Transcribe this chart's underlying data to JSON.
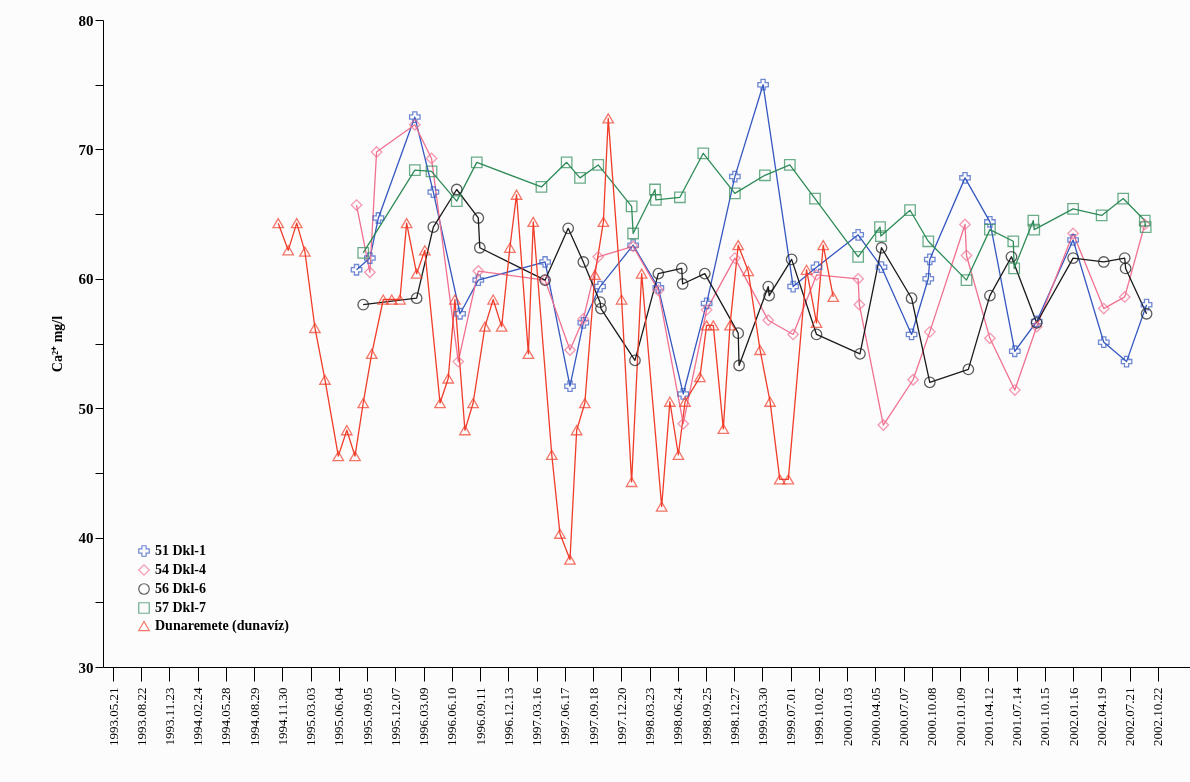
{
  "chart_data": {
    "type": "line",
    "ylabel": "Ca²⁺ mg/l",
    "xlim": [
      "1993-04-18",
      "2003-02-05"
    ],
    "ylim": [
      30,
      80
    ],
    "yticks": [
      30,
      {
        "value": 35,
        "label": null
      },
      40,
      {
        "value": 45,
        "label": null
      },
      50,
      {
        "value": 55,
        "label": null
      },
      60,
      {
        "value": 65,
        "label": null
      },
      70,
      {
        "value": 75,
        "label": null
      },
      80
    ],
    "xticks": [
      {
        "value": "1993-05-21",
        "label": "1993.05.21"
      },
      {
        "value": "1993-08-22",
        "label": "1993.08.22"
      },
      {
        "value": "1993-11-23",
        "label": "1993.11.23"
      },
      {
        "value": "1994-02-24",
        "label": "1994.02.24"
      },
      {
        "value": "1994-05-28",
        "label": "1994.05.28"
      },
      {
        "value": "1994-08-29",
        "label": "1994.08.29"
      },
      {
        "value": "1994-11-30",
        "label": "1994.11.30"
      },
      {
        "value": "1995-03-03",
        "label": "1995.03.03"
      },
      {
        "value": "1995-06-04",
        "label": "1995.06.04"
      },
      {
        "value": "1995-09-05",
        "label": "1995.09.05"
      },
      {
        "value": "1995-12-07",
        "label": "1995.12.07"
      },
      {
        "value": "1996-03-09",
        "label": "1996.03.09"
      },
      {
        "value": "1996-06-10",
        "label": "1996.06.10"
      },
      {
        "value": "1996-09-11",
        "label": "1996.09.11"
      },
      {
        "value": "1996-12-13",
        "label": "1996.12.13"
      },
      {
        "value": "1997-03-16",
        "label": "1997.03.16"
      },
      {
        "value": "1997-06-17",
        "label": "1997.06.17"
      },
      {
        "value": "1997-09-18",
        "label": "1997.09.18"
      },
      {
        "value": "1997-12-20",
        "label": "1997.12.20"
      },
      {
        "value": "1998-03-23",
        "label": "1998.03.23"
      },
      {
        "value": "1998-06-24",
        "label": "1998.06.24"
      },
      {
        "value": "1998-09-25",
        "label": "1998.09.25"
      },
      {
        "value": "1998-12-27",
        "label": "1998.12.27"
      },
      {
        "value": "1999-03-30",
        "label": "1999.03.30"
      },
      {
        "value": "1999-07-01",
        "label": "1999.07.01"
      },
      {
        "value": "1999-10-02",
        "label": "1999.10.02"
      },
      {
        "value": "2000-01-03",
        "label": "2000.01.03"
      },
      {
        "value": "2000-04-05",
        "label": "2000.04.05"
      },
      {
        "value": "2000-07-07",
        "label": "2000.07.07"
      },
      {
        "value": "2000-10-08",
        "label": "2000.10.08"
      },
      {
        "value": "2001-01-09",
        "label": "2001.01.09"
      },
      {
        "value": "2001-04-12",
        "label": "2001.04.12"
      },
      {
        "value": "2001-07-14",
        "label": "2001.07.14"
      },
      {
        "value": "2001-10-15",
        "label": "2001.10.15"
      },
      {
        "value": "2002-01-16",
        "label": "2002.01.16"
      },
      {
        "value": "2002-04-19",
        "label": "2002.04.19"
      },
      {
        "value": "2002-07-21",
        "label": "2002.07.21"
      },
      {
        "value": "2002-10-22",
        "label": "2002.10.22"
      }
    ],
    "grid": false,
    "legend": "bottom left",
    "series": [
      {
        "name": "51 Dkl-1",
        "color": "#3558c0",
        "marker": "cross",
        "x": [
          "1995-08-01",
          "1995-09-14",
          "1995-10-12",
          "1996-02-09",
          "1996-04-10",
          "1996-07-07",
          "1996-09-05",
          "1997-04-13",
          "1997-07-04",
          "1997-08-17",
          "1997-10-11",
          "1998-01-28",
          "1998-04-21",
          "1998-07-12",
          "1998-09-27",
          "1998-12-29",
          "1999-04-01",
          "1999-07-09",
          "1999-09-24",
          "2000-02-08",
          "2000-04-25",
          "2000-08-02",
          "2000-09-26",
          "2000-10-01",
          "2001-01-25",
          "2001-04-17",
          "2001-07-08",
          "2001-09-18",
          "2002-01-16",
          "2002-04-27",
          "2002-07-11",
          "2002-09-15"
        ],
        "values": [
          60.7,
          61.6,
          64.7,
          72.5,
          66.7,
          57.3,
          59.9,
          61.3,
          51.7,
          56.6,
          59.4,
          62.6,
          59.3,
          51.1,
          58.1,
          67.9,
          75.0,
          59.4,
          60.9,
          63.4,
          60.9,
          55.7,
          60.0,
          61.5,
          67.8,
          64.4,
          54.4,
          56.7,
          63.0,
          55.1,
          53.6,
          58.0
        ]
      },
      {
        "name": "54 Dkl-4",
        "color": "#f07090",
        "marker": "diamond",
        "x": [
          "1995-08-01",
          "1995-09-14",
          "1995-10-06",
          "1996-02-09",
          "1996-04-04",
          "1996-07-01",
          "1996-09-05",
          "1997-04-13",
          "1997-07-04",
          "1997-08-17",
          "1997-10-05",
          "1998-01-28",
          "1998-04-21",
          "1998-07-12",
          "1998-09-27",
          "1998-12-29",
          "1999-04-18",
          "1999-07-09",
          "1999-09-24",
          "2000-02-08",
          "2000-02-12",
          "2000-05-01",
          "2000-08-07",
          "2000-10-01",
          "2001-01-25",
          "2001-01-30",
          "2001-04-17",
          "2001-07-08",
          "2001-09-18",
          "2002-01-16",
          "2002-04-27",
          "2002-07-05",
          "2002-09-09"
        ],
        "values": [
          65.7,
          60.5,
          69.8,
          71.9,
          69.3,
          53.6,
          60.6,
          59.9,
          54.5,
          56.9,
          61.7,
          62.5,
          59.1,
          48.8,
          57.6,
          61.6,
          56.8,
          55.7,
          60.3,
          60.0,
          58.0,
          48.7,
          52.2,
          55.9,
          64.2,
          61.8,
          55.4,
          51.4,
          56.3,
          63.5,
          57.7,
          58.6,
          64.2
        ]
      },
      {
        "name": "56 Dkl-6",
        "color": "#1a1a1a",
        "marker": "circle",
        "x": [
          "1995-08-23",
          "1996-02-15",
          "1996-04-10",
          "1996-06-26",
          "1996-09-05",
          "1996-09-10",
          "1997-04-13",
          "1997-06-28",
          "1997-08-17",
          "1997-10-11",
          "1997-10-14",
          "1998-02-03",
          "1998-04-21",
          "1998-07-07",
          "1998-07-10",
          "1998-09-21",
          "1999-01-09",
          "1999-01-12",
          "1999-04-18",
          "1999-04-21",
          "1999-07-04",
          "1999-09-24",
          "2000-02-14",
          "2000-04-25",
          "2000-08-02",
          "2000-10-01",
          "2001-02-05",
          "2001-04-17",
          "2001-06-27",
          "2001-09-18",
          "2002-01-16",
          "2002-04-27",
          "2002-07-05",
          "2002-07-08",
          "2002-09-15"
        ],
        "values": [
          58.0,
          58.5,
          64.0,
          66.9,
          64.7,
          62.4,
          59.9,
          63.9,
          61.3,
          58.2,
          57.7,
          53.7,
          60.4,
          60.8,
          59.6,
          60.4,
          55.8,
          53.3,
          59.4,
          58.7,
          61.5,
          55.7,
          54.2,
          62.4,
          58.5,
          52.0,
          53.0,
          58.7,
          61.7,
          56.6,
          61.6,
          61.3,
          61.6,
          60.8,
          57.3
        ]
      },
      {
        "name": "57 Dkl-7",
        "color": "#2e8b57",
        "marker": "square",
        "x": [
          "1995-08-23",
          "1996-02-09",
          "1996-04-04",
          "1996-06-26",
          "1996-08-31",
          "1997-04-01",
          "1997-06-23",
          "1997-08-06",
          "1997-10-05",
          "1998-01-23",
          "1998-01-28",
          "1998-04-10",
          "1998-04-13",
          "1998-07-01",
          "1998-09-16",
          "1998-12-29",
          "1999-04-07",
          "1999-06-28",
          "1999-09-19",
          "2000-02-08",
          "2000-04-20",
          "2000-04-23",
          "2000-07-28",
          "2000-09-26",
          "2001-01-30",
          "2001-04-17",
          "2001-07-03",
          "2001-07-06",
          "2001-09-07",
          "2001-09-10",
          "2002-01-16",
          "2002-04-20",
          "2002-06-30",
          "2002-09-09",
          "2002-09-12"
        ],
        "values": [
          62.0,
          68.4,
          68.3,
          66.0,
          69.0,
          67.1,
          69.0,
          67.8,
          68.8,
          65.6,
          63.5,
          66.9,
          66.1,
          66.3,
          69.7,
          66.6,
          68.0,
          68.8,
          66.2,
          61.7,
          64.0,
          63.3,
          65.3,
          62.9,
          59.9,
          63.8,
          62.9,
          60.8,
          64.5,
          63.8,
          65.4,
          64.9,
          66.2,
          64.5,
          64.0
        ]
      },
      {
        "name": "Dunaremete (dunavíz)",
        "color": "#f03c28",
        "marker": "triangle",
        "x": [
          "1994-11-16",
          "1994-12-19",
          "1995-01-16",
          "1995-02-12",
          "1995-03-17",
          "1995-04-19",
          "1995-06-02",
          "1995-06-30",
          "1995-07-27",
          "1995-08-23",
          "1995-09-20",
          "1995-10-28",
          "1995-11-25",
          "1995-12-22",
          "1996-01-13",
          "1996-02-15",
          "1996-03-13",
          "1996-05-02",
          "1996-05-29",
          "1996-06-20",
          "1996-07-23",
          "1996-08-19",
          "1996-09-27",
          "1996-10-24",
          "1996-11-21",
          "1996-12-18",
          "1997-01-09",
          "1997-02-17",
          "1997-03-05",
          "1997-05-05",
          "1997-06-01",
          "1997-07-04",
          "1997-07-26",
          "1997-08-22",
          "1997-09-24",
          "1997-10-22",
          "1997-11-07",
          "1997-12-21",
          "1998-01-23",
          "1998-02-25",
          "1998-05-02",
          "1998-05-29",
          "1998-06-26",
          "1998-07-18",
          "1998-09-05",
          "1998-09-27",
          "1998-10-19",
          "1998-11-21",
          "1998-12-13",
          "1999-01-09",
          "1999-02-11",
          "1999-03-22",
          "1999-04-24",
          "1999-05-26",
          "1999-06-23",
          "1999-08-22",
          "1999-09-24",
          "1999-10-16",
          "1999-11-18"
        ],
        "values": [
          64.3,
          62.2,
          64.3,
          62.1,
          56.2,
          52.2,
          46.3,
          48.3,
          46.3,
          50.4,
          54.2,
          58.4,
          58.4,
          58.4,
          64.3,
          60.4,
          62.2,
          50.4,
          52.3,
          58.4,
          48.3,
          50.4,
          56.3,
          58.4,
          56.3,
          62.4,
          66.5,
          54.2,
          64.4,
          46.4,
          40.3,
          38.3,
          48.3,
          50.4,
          60.3,
          64.4,
          72.4,
          58.4,
          44.3,
          60.4,
          42.4,
          50.5,
          46.4,
          50.5,
          52.4,
          56.4,
          56.4,
          48.4,
          56.4,
          62.6,
          60.6,
          54.5,
          50.5,
          44.5,
          44.5,
          60.7,
          56.6,
          62.6,
          58.6
        ]
      }
    ]
  }
}
